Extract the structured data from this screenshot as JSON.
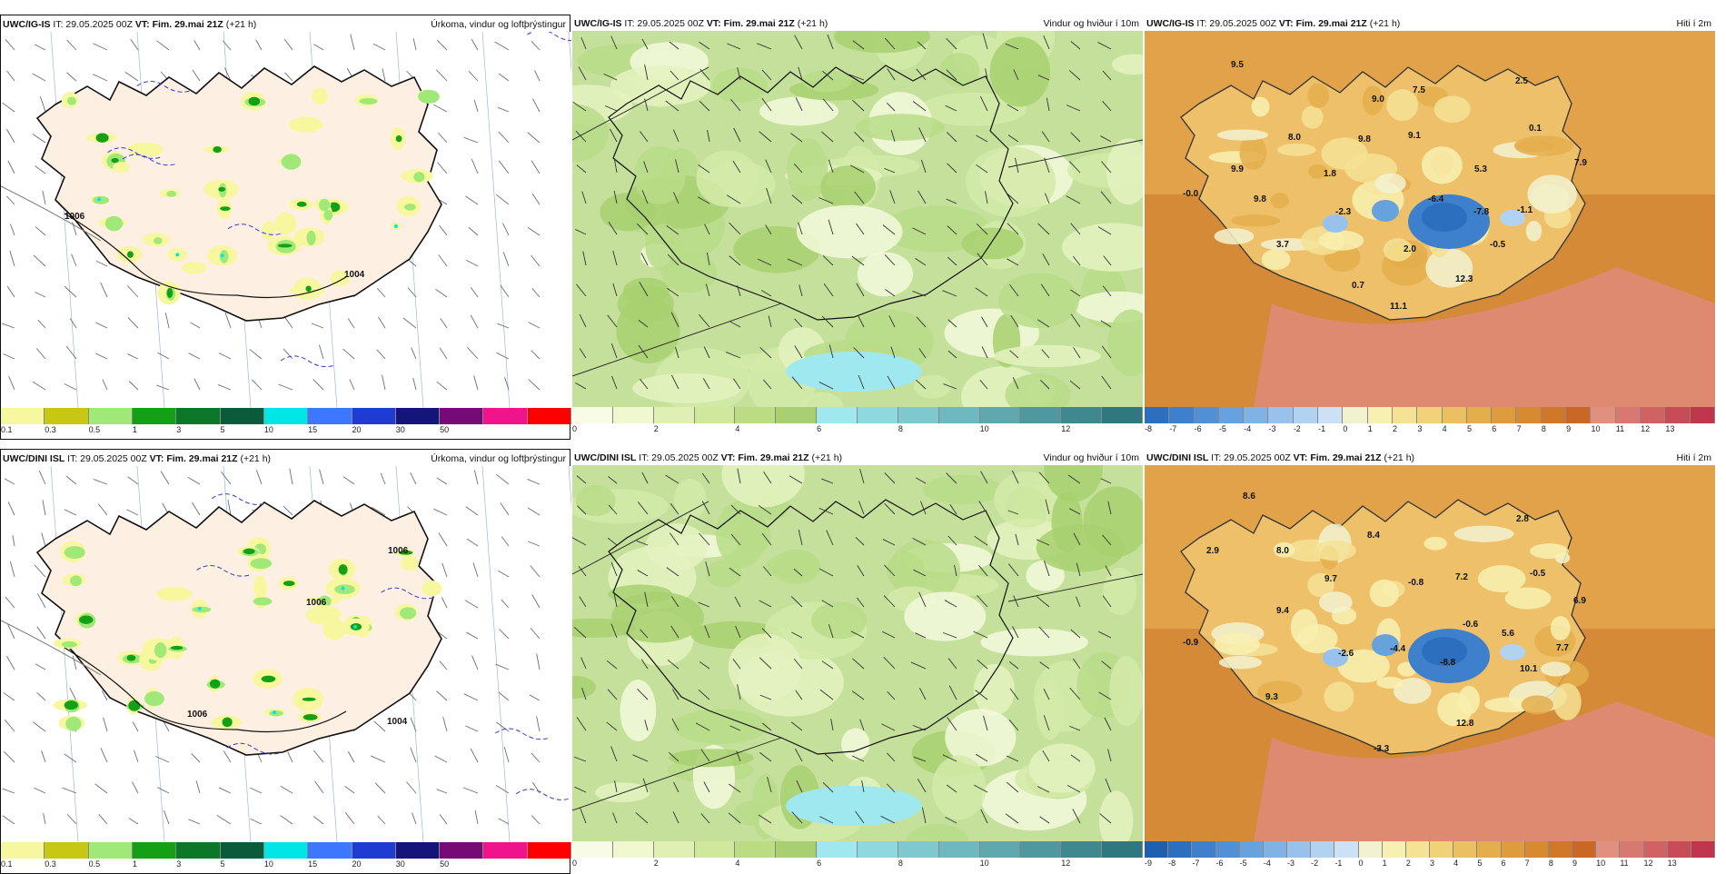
{
  "panels": [
    {
      "model": "UWC/IG-IS",
      "it": "IT: 29.05.2025 00Z",
      "vt_prefix": "VT:",
      "vt": "Fim. 29.mai 21Z",
      "lead": "(+21 h)",
      "title": "Úrkoma, vindur og loftþrýstingur",
      "type": "precip",
      "colorbar": {
        "colors": [
          "#f7f7a0",
          "#c8c814",
          "#a0e878",
          "#14a014",
          "#0a7828",
          "#0a5a3c",
          "#00e6e6",
          "#3c78ff",
          "#1e3cd2",
          "#14147a",
          "#780a78",
          "#f0148c",
          "#ff0000"
        ],
        "ticks": [
          "0.1",
          "0.3",
          "0.5",
          "1",
          "3",
          "5",
          "10",
          "15",
          "20",
          "30",
          "50"
        ]
      },
      "labels": [
        {
          "text": "1004"
        },
        {
          "text": "1006"
        }
      ]
    },
    {
      "model": "UWC/IG-IS",
      "it": "IT: 29.05.2025 00Z",
      "vt_prefix": "VT:",
      "vt": "Fim. 29.mai 21Z",
      "lead": "(+21 h)",
      "title": "Vindur og hviður í 10m",
      "type": "wind",
      "colorbar": {
        "colors": [
          "#f8fce6",
          "#f0f8d0",
          "#e0f0b4",
          "#d0e89c",
          "#bcdc84",
          "#a8d070",
          "#a0e8f0",
          "#90d8e0",
          "#80c8d0",
          "#70b8c0",
          "#60a8b0",
          "#5098a0",
          "#408890",
          "#307880"
        ],
        "ticks": [
          "0",
          "2",
          "4",
          "6",
          "8",
          "10",
          "12"
        ]
      },
      "labels": []
    },
    {
      "model": "UWC/IG-IS",
      "it": "IT: 29.05.2025 00Z",
      "vt_prefix": "VT:",
      "vt": "Fim. 29.mai 21Z",
      "lead": "(+21 h)",
      "title": "Hiti í 2m",
      "type": "temp",
      "colorbar": {
        "colors": [
          "#2c6fbf",
          "#3f80cc",
          "#5290d6",
          "#68a2de",
          "#80b2e6",
          "#98c2ec",
          "#b2d2f2",
          "#cce0f6",
          "#f2f2d0",
          "#f8f0b0",
          "#f5e294",
          "#f0d278",
          "#eac060",
          "#e4ae4c",
          "#de9c3c",
          "#d88a30",
          "#d07828",
          "#c86824",
          "#e0907c",
          "#d87870",
          "#d06264",
          "#c84c58",
          "#c0364c"
        ],
        "ticks": [
          "-8",
          "-7",
          "-6",
          "-5",
          "-4",
          "-3",
          "-2",
          "-1",
          "0",
          "1",
          "2",
          "3",
          "4",
          "5",
          "6",
          "7",
          "8",
          "9",
          "10",
          "11",
          "12",
          "13"
        ]
      },
      "labels": [
        {
          "text": "9.5"
        },
        {
          "text": "7.5"
        },
        {
          "text": "2.5"
        },
        {
          "text": "9.0"
        },
        {
          "text": "8.0"
        },
        {
          "text": "9.8"
        },
        {
          "text": "9.1"
        },
        {
          "text": "0.1"
        },
        {
          "text": "9.9"
        },
        {
          "text": "1.8"
        },
        {
          "text": "5.3"
        },
        {
          "text": "7.9"
        },
        {
          "text": "-0.0"
        },
        {
          "text": "9.8"
        },
        {
          "text": "-6.4"
        },
        {
          "text": "-2.3"
        },
        {
          "text": "-7.8"
        },
        {
          "text": "-1.1"
        },
        {
          "text": "3.7"
        },
        {
          "text": "2.0"
        },
        {
          "text": "-0.5"
        },
        {
          "text": "0.7"
        },
        {
          "text": "12.3"
        },
        {
          "text": "11.1"
        }
      ]
    },
    {
      "model": "UWC/DINI ISL",
      "it": "IT: 29.05.2025 00Z",
      "vt_prefix": "VT:",
      "vt": "Fim. 29.mai 21Z",
      "lead": "(+21 h)",
      "title": "Úrkoma, vindur og loftþrýstingur",
      "type": "precip",
      "colorbar": {
        "colors": [
          "#f7f7a0",
          "#c8c814",
          "#a0e878",
          "#14a014",
          "#0a7828",
          "#0a5a3c",
          "#00e6e6",
          "#3c78ff",
          "#1e3cd2",
          "#14147a",
          "#780a78",
          "#f0148c",
          "#ff0000"
        ],
        "ticks": [
          "0.1",
          "0.3",
          "0.5",
          "1",
          "3",
          "5",
          "10",
          "15",
          "20",
          "30",
          "50"
        ]
      },
      "labels": [
        {
          "text": "1004"
        },
        {
          "text": "1006"
        },
        {
          "text": "1006"
        },
        {
          "text": "1006"
        }
      ]
    },
    {
      "model": "UWC/DINI ISL",
      "it": "IT: 29.05.2025 00Z",
      "vt_prefix": "VT:",
      "vt": "Fim. 29.mai 21Z",
      "lead": "(+21 h)",
      "title": "Vindur og hviður í 10m",
      "type": "wind",
      "colorbar": {
        "colors": [
          "#f8fce6",
          "#f0f8d0",
          "#e0f0b4",
          "#d0e89c",
          "#bcdc84",
          "#a8d070",
          "#a0e8f0",
          "#90d8e0",
          "#80c8d0",
          "#70b8c0",
          "#60a8b0",
          "#5098a0",
          "#408890",
          "#307880"
        ],
        "ticks": [
          "0",
          "2",
          "4",
          "6",
          "8",
          "10",
          "12"
        ]
      },
      "labels": []
    },
    {
      "model": "UWC/DINI ISL",
      "it": "IT: 29.05.2025 00Z",
      "vt_prefix": "VT:",
      "vt": "Fim. 29.mai 21Z",
      "lead": "(+21 h)",
      "title": "Hiti í 2m",
      "type": "temp",
      "colorbar": {
        "colors": [
          "#1f5fb0",
          "#2c6fbf",
          "#3f80cc",
          "#5290d6",
          "#68a2de",
          "#80b2e6",
          "#98c2ec",
          "#b2d2f2",
          "#cce0f6",
          "#f2f2d0",
          "#f8f0b0",
          "#f5e294",
          "#f0d278",
          "#eac060",
          "#e4ae4c",
          "#de9c3c",
          "#d88a30",
          "#d07828",
          "#c86824",
          "#e0907c",
          "#d87870",
          "#d06264",
          "#c84c58",
          "#c0364c"
        ],
        "ticks": [
          "-9",
          "-8",
          "-7",
          "-6",
          "-5",
          "-4",
          "-3",
          "-2",
          "-1",
          "0",
          "1",
          "2",
          "3",
          "4",
          "5",
          "6",
          "7",
          "8",
          "9",
          "10",
          "11",
          "12",
          "13"
        ]
      },
      "labels": [
        {
          "text": "8.6"
        },
        {
          "text": "2.8"
        },
        {
          "text": "2.9"
        },
        {
          "text": "8.0"
        },
        {
          "text": "8.4"
        },
        {
          "text": "9.7"
        },
        {
          "text": "-0.8"
        },
        {
          "text": "7.2"
        },
        {
          "text": "-0.5"
        },
        {
          "text": "6.9"
        },
        {
          "text": "9.4"
        },
        {
          "text": "-0.6"
        },
        {
          "text": "5.6"
        },
        {
          "text": "-0.9"
        },
        {
          "text": "-2.6"
        },
        {
          "text": "-4.4"
        },
        {
          "text": "7.7"
        },
        {
          "text": "-8.8"
        },
        {
          "text": "10.1"
        },
        {
          "text": "9.3"
        },
        {
          "text": "12.8"
        },
        {
          "text": "-3.3"
        }
      ]
    }
  ]
}
